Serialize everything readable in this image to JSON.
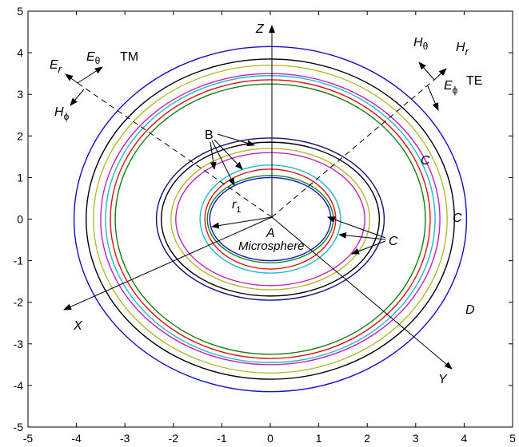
{
  "axes": {
    "xlim": [
      -5,
      5
    ],
    "ylim": [
      -5,
      5
    ],
    "xticks": [
      "-5",
      "-4",
      "-3",
      "-2",
      "-1",
      "0",
      "1",
      "2",
      "3",
      "4",
      "5"
    ],
    "yticks": [
      "5",
      "4",
      "3",
      "2",
      "1",
      "0",
      "-1",
      "-2",
      "-3",
      "-4",
      "-5"
    ]
  },
  "labels": {
    "z": "Z",
    "x": "X",
    "y": "Y",
    "a": "A",
    "microsphere": "Microsphere",
    "r": "r",
    "r_sub": "1",
    "b": "B",
    "c": "C",
    "d": "D",
    "er": "E",
    "er_sub": "r",
    "etheta": "E",
    "etheta_sub": "θ",
    "tm": "TM",
    "hphi": "H",
    "hphi_sub": "ϕ",
    "htheta": "H",
    "htheta_sub": "θ",
    "hr": "H",
    "hr_sub": "r",
    "ephi": "E",
    "ephi_sub": "ϕ",
    "te": "TE"
  },
  "colors": {
    "blue": "#1010c8",
    "black": "#000000",
    "yellow": "#b8b830",
    "magenta": "#c020c0",
    "cyan": "#20b8c8",
    "red": "#e01010",
    "green": "#108010",
    "navy": "#101080"
  },
  "rings": [
    {
      "rx": 4.05,
      "ry": 4.15,
      "color": "blue"
    },
    {
      "rx": 3.8,
      "ry": 3.85,
      "color": "black"
    },
    {
      "rx": 3.65,
      "ry": 3.7,
      "color": "yellow"
    },
    {
      "rx": 3.5,
      "ry": 3.5,
      "color": "magenta"
    },
    {
      "rx": 3.4,
      "ry": 3.45,
      "color": "cyan"
    },
    {
      "rx": 3.3,
      "ry": 3.35,
      "color": "red"
    },
    {
      "rx": 3.2,
      "ry": 3.25,
      "color": "green"
    },
    {
      "rx": 2.35,
      "ry": 1.95,
      "color": "navy"
    },
    {
      "rx": 2.25,
      "ry": 1.85,
      "color": "black"
    },
    {
      "rx": 2.05,
      "ry": 1.7,
      "color": "yellow"
    },
    {
      "rx": 1.95,
      "ry": 1.6,
      "color": "magenta"
    },
    {
      "rx": 1.45,
      "ry": 1.3,
      "color": "cyan"
    },
    {
      "rx": 1.35,
      "ry": 1.2,
      "color": "red"
    },
    {
      "rx": 1.3,
      "ry": 1.05,
      "color": "green"
    },
    {
      "rx": 1.25,
      "ry": 1.0,
      "color": "blue"
    }
  ]
}
